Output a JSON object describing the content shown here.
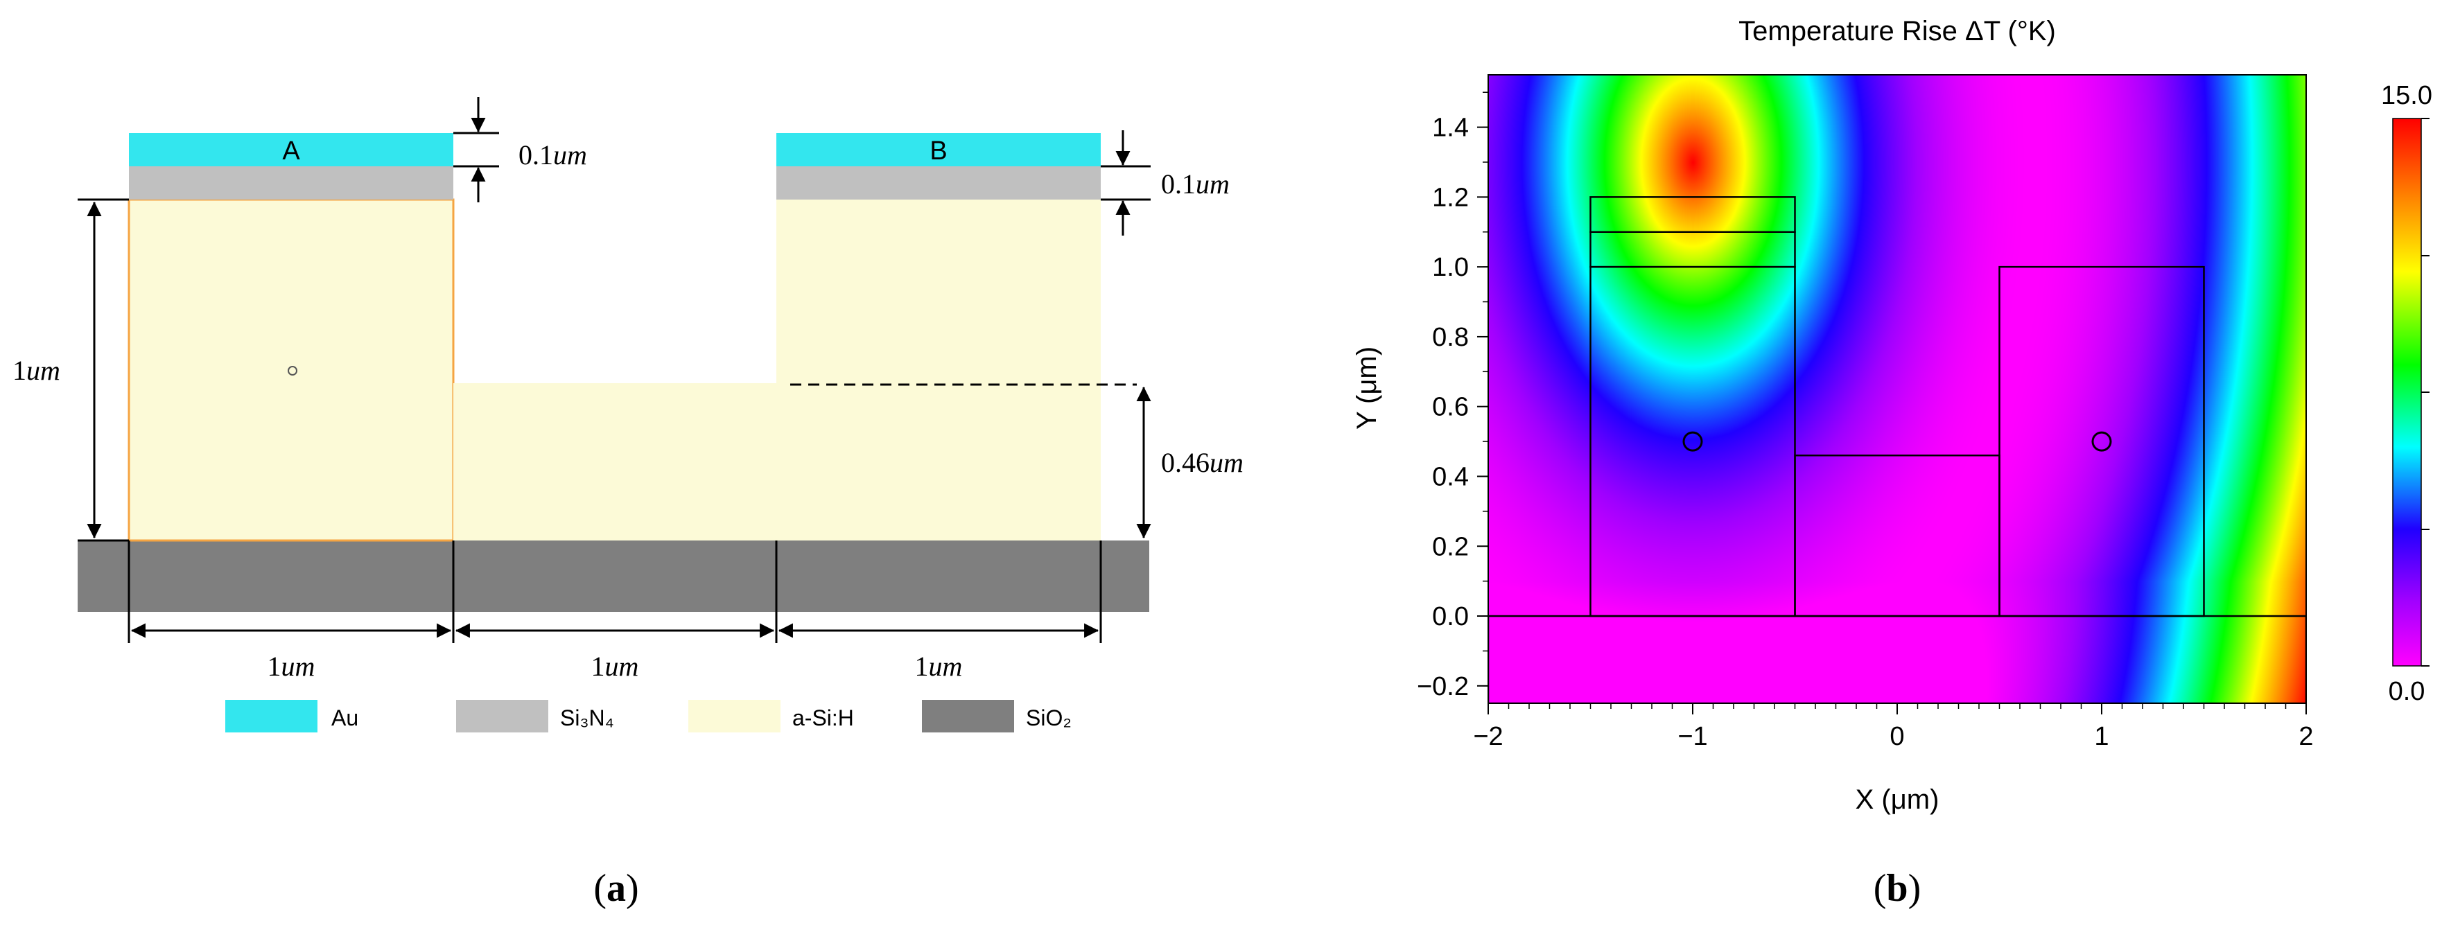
{
  "panel_a": {
    "caption_open": "(",
    "caption_letter": "a",
    "caption_close": ")",
    "label_a": "A",
    "label_b": "B",
    "dims": {
      "thickness_left_num": "0.1",
      "thickness_right_num": "0.1",
      "height_left_num": "1",
      "recess_right_num": "0.46",
      "width_1_num": "1",
      "width_2_num": "1",
      "width_3_num": "1",
      "unit": "um"
    },
    "legend": [
      {
        "label": "Au",
        "color": "#33E6EE"
      },
      {
        "label": "Si₃N₄",
        "color": "#C0C0C0"
      },
      {
        "label": "a-Si:H",
        "color": "#FCFAD7"
      },
      {
        "label": "SiO₂",
        "color": "#7F7F7F"
      }
    ]
  },
  "panel_b": {
    "caption_open": "(",
    "caption_letter": "b",
    "caption_close": ")",
    "chart_data": {
      "type": "heatmap",
      "title": "Temperature Rise ΔT (°K)",
      "xlabel": "X (μm)",
      "ylabel": "Y (μm)",
      "xlim": [
        -2,
        2
      ],
      "ylim": [
        -0.25,
        1.55
      ],
      "x_ticks": [
        "−2",
        "−1",
        "0",
        "1",
        "2"
      ],
      "x_tick_values": [
        -2,
        -1,
        0,
        1,
        2
      ],
      "y_ticks": [
        "−0.2",
        "0.0",
        "0.2",
        "0.4",
        "0.6",
        "0.8",
        "1.0",
        "1.2",
        "1.4"
      ],
      "y_tick_values": [
        -0.2,
        0,
        0.2,
        0.4,
        0.6,
        0.8,
        1.0,
        1.2,
        1.4
      ],
      "colorbar": {
        "min_label": "0.0",
        "max_label": "15.0",
        "min": 0,
        "max": 15
      },
      "hotspot": {
        "x": -1.0,
        "y": 1.3
      },
      "outlines": [
        {
          "x0": -1.5,
          "y0": 0.0,
          "x1": -0.5,
          "y1": 1.0
        },
        {
          "x0": -1.5,
          "y0": 1.0,
          "x1": -0.5,
          "y1": 1.1
        },
        {
          "x0": -1.5,
          "y0": 1.1,
          "x1": -0.5,
          "y1": 1.2
        },
        {
          "x0": 0.5,
          "y0": 0.0,
          "x1": 1.5,
          "y1": 1.0
        },
        {
          "x0": -0.5,
          "y0": 0.0,
          "x1": 0.5,
          "y1": 0.46
        },
        {
          "x0": -2.0,
          "y0": -0.25,
          "x1": 2.0,
          "y1": 0.0
        }
      ],
      "markers": [
        {
          "x": -1.0,
          "y": 0.5
        },
        {
          "x": 1.0,
          "y": 0.5
        }
      ]
    }
  }
}
